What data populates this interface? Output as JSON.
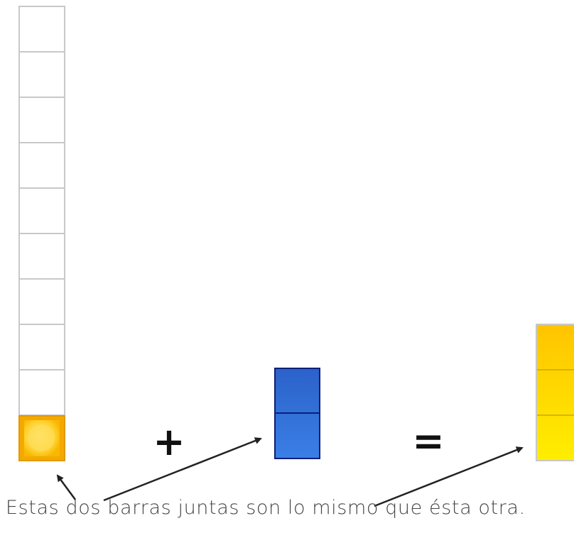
{
  "operator_plus": "+",
  "operator_equals": "=",
  "caption": "Estas dos barras juntas son lo mismo que ésta otra.",
  "tall_bar": {
    "total_units": 10,
    "filled_units": 1
  },
  "blue_bar": {
    "units": 2
  },
  "yellow_bar": {
    "units": 3
  },
  "colors": {
    "grid_border": "#c8c8c8",
    "unit_orange": "#f5a800",
    "unit_yellow_fill": "#ffd83a",
    "blue_fill_top": "#2b62c9",
    "blue_fill_bottom": "#3a7fe6",
    "blue_border": "#0c1f7a",
    "yellow_top": "#ffc400",
    "yellow_bottom": "#ffee00",
    "yellow_border": "#c8c8c8",
    "yellow_divider": "#c9a800",
    "arrow": "#222222",
    "text": "#444444"
  }
}
